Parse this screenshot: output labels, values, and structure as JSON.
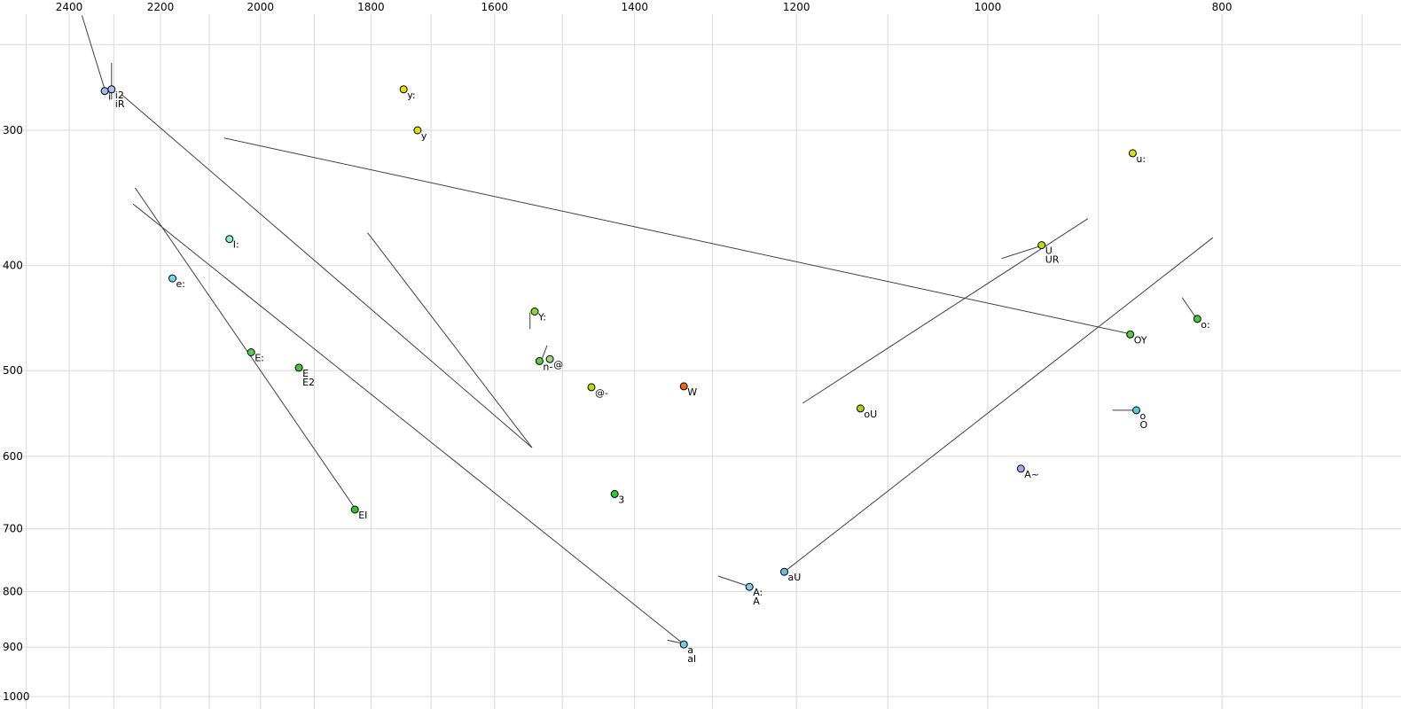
{
  "chart_data": {
    "type": "scatter",
    "description": "Vowel formant chart: F2 (Hz) on horizontal axis decreasing rightward, F1 (Hz) on vertical axis increasing downward, both log-scaled; labeled vowel points with diphthong trajectory lines",
    "x_axis": {
      "scale": "log",
      "reversed": true,
      "ticks": [
        2400,
        2200,
        2000,
        1800,
        1600,
        1400,
        1200,
        1000,
        800
      ],
      "gridlines": [
        2500,
        2400,
        2300,
        2200,
        2100,
        2000,
        1900,
        1800,
        1700,
        1600,
        1500,
        1400,
        1300,
        1200,
        1100,
        1000,
        900,
        800,
        700
      ],
      "range": [
        2565,
        675
      ]
    },
    "y_axis": {
      "scale": "log",
      "ticks": [
        300,
        400,
        500,
        600,
        700,
        800,
        900,
        1000
      ],
      "gridlines": [
        250,
        300,
        400,
        500,
        600,
        700,
        800,
        900,
        1000
      ],
      "range": [
        228,
        1028
      ]
    },
    "style": {
      "background": "#ffffff",
      "gridline_color": "#d9d9d9",
      "segment_color": "#3f3f3f",
      "point_stroke": "#000000",
      "label_color": "#000000"
    },
    "points": [
      {
        "labels": [
          "i"
        ],
        "f2": 2320,
        "f1": 276,
        "color": "#9fb9f2"
      },
      {
        "labels": [
          "i2",
          "iR"
        ],
        "f2": 2305,
        "f1": 275,
        "color": "#a9c3ef"
      },
      {
        "labels": [
          "y:"
        ],
        "f2": 1745,
        "f1": 275,
        "color": "#e3e300"
      },
      {
        "labels": [
          "y"
        ],
        "f2": 1722,
        "f1": 300,
        "color": "#dede10"
      },
      {
        "labels": [
          "u:"
        ],
        "f2": 871,
        "f1": 315,
        "color": "#d5e010"
      },
      {
        "labels": [
          "I:"
        ],
        "f2": 2060,
        "f1": 378,
        "color": "#8feec6"
      },
      {
        "labels": [
          "e:"
        ],
        "f2": 2175,
        "f1": 411,
        "color": "#6fd8ee"
      },
      {
        "labels": [
          "U",
          "UR"
        ],
        "f2": 950,
        "f1": 383,
        "color": "#b6e010"
      },
      {
        "labels": [
          "o:"
        ],
        "f2": 819,
        "f1": 448,
        "color": "#46c83c"
      },
      {
        "labels": [
          "OY"
        ],
        "f2": 873,
        "f1": 463,
        "color": "#4fcc3a"
      },
      {
        "labels": [
          "Y:"
        ],
        "f2": 1540,
        "f1": 441,
        "color": "#86dc2e"
      },
      {
        "labels": [
          "E:"
        ],
        "f2": 2018,
        "f1": 481,
        "color": "#52d052"
      },
      {
        "labels": [
          "E",
          "E2"
        ],
        "f2": 1928,
        "f1": 497,
        "color": "#3cc83c"
      },
      {
        "labels": [
          "n-"
        ],
        "f2": 1533,
        "f1": 490,
        "color": "#5ecc3c"
      },
      {
        "labels": [
          "@"
        ],
        "f2": 1518,
        "f1": 488,
        "color": "#96dc78"
      },
      {
        "labels": [
          "@-"
        ],
        "f2": 1459,
        "f1": 518,
        "color": "#bcd800"
      },
      {
        "labels": [
          "W"
        ],
        "f2": 1336,
        "f1": 517,
        "color": "#e8680e"
      },
      {
        "labels": [
          "oU"
        ],
        "f2": 1129,
        "f1": 542,
        "color": "#b2cc10"
      },
      {
        "labels": [
          "o",
          "O"
        ],
        "f2": 868,
        "f1": 544,
        "color": "#52ccdc"
      },
      {
        "labels": [
          "A~"
        ],
        "f2": 969,
        "f1": 616,
        "color": "#9cacee"
      },
      {
        "labels": [
          "3"
        ],
        "f2": 1427,
        "f1": 650,
        "color": "#30c830"
      },
      {
        "labels": [
          "EI"
        ],
        "f2": 1828,
        "f1": 672,
        "color": "#30c230"
      },
      {
        "labels": [
          "aU"
        ],
        "f2": 1214,
        "f1": 767,
        "color": "#6cbce2"
      },
      {
        "labels": [
          "A:",
          "A"
        ],
        "f2": 1255,
        "f1": 792,
        "color": "#80cce0"
      },
      {
        "labels": [
          "a",
          "aI"
        ],
        "f2": 1336,
        "f1": 895,
        "color": "#74cce0"
      }
    ],
    "segments": [
      {
        "from": [
          2371,
          235
        ],
        "to": [
          2320,
          275
        ]
      },
      {
        "from": [
          2305,
          260
        ],
        "to": [
          2305,
          281
        ]
      },
      {
        "from": [
          2283,
          278
        ],
        "to": [
          1544,
          589
        ]
      },
      {
        "from": [
          2254,
          339
        ],
        "to": [
          1828,
          670
        ]
      },
      {
        "from": [
          2258,
          351
        ],
        "to": [
          1340,
          890
        ]
      },
      {
        "from": [
          2070,
          305
        ],
        "to": [
          875,
          462
        ]
      },
      {
        "from": [
          1806,
          373
        ],
        "to": [
          1544,
          589
        ]
      },
      {
        "from": [
          1193,
          536
        ],
        "to": [
          909,
          362
        ]
      },
      {
        "from": [
          1214,
          767
        ],
        "to": [
          807,
          377
        ]
      },
      {
        "from": [
          987,
          394
        ],
        "to": [
          952,
          384
        ]
      },
      {
        "from": [
          831,
          428
        ],
        "to": [
          820,
          447
        ]
      },
      {
        "from": [
          888,
          544
        ],
        "to": [
          870,
          544
        ]
      },
      {
        "from": [
          1293,
          774
        ],
        "to": [
          1258,
          790
        ]
      },
      {
        "from": [
          1357,
          887
        ],
        "to": [
          1338,
          893
        ]
      },
      {
        "from": [
          1522,
          474
        ],
        "to": [
          1529,
          487
        ]
      },
      {
        "from": [
          1547,
          442
        ],
        "to": [
          1547,
          458
        ]
      }
    ]
  }
}
